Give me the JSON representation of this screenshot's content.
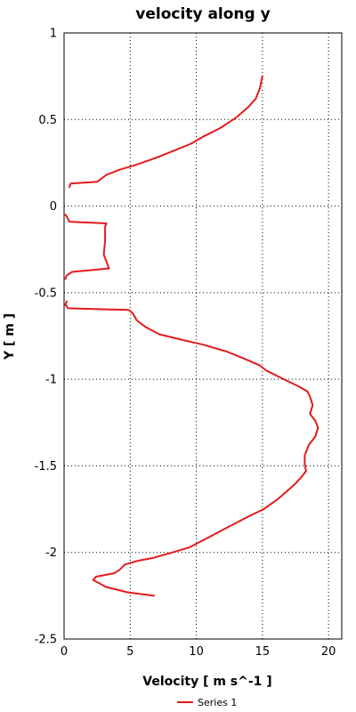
{
  "chart_data": {
    "type": "line",
    "title": "velocity along y",
    "xlabel": "Velocity [ m s^-1 ]",
    "ylabel": "Y [ m ]",
    "xlim": [
      0,
      21
    ],
    "ylim": [
      -2.5,
      1
    ],
    "xticks": [
      0,
      5,
      10,
      15,
      20
    ],
    "yticks": [
      1,
      0.5,
      0,
      -0.5,
      -1,
      -1.5,
      -2,
      -2.5
    ],
    "grid": true,
    "legend_position": "bottom-center",
    "series": [
      {
        "name": "Series 1",
        "color": "#e41a1c",
        "segments": [
          [
            [
              15,
              0.75
            ],
            [
              14.8,
              0.68
            ],
            [
              14.5,
              0.62
            ],
            [
              13.9,
              0.57
            ],
            [
              13,
              0.51
            ],
            [
              11.8,
              0.45
            ],
            [
              10.5,
              0.4
            ],
            [
              9.6,
              0.36
            ],
            [
              8.3,
              0.32
            ],
            [
              7,
              0.28
            ],
            [
              5.5,
              0.24
            ],
            [
              4.2,
              0.21
            ],
            [
              3.2,
              0.18
            ],
            [
              2.5,
              0.14
            ],
            [
              0.5,
              0.13
            ],
            [
              0.4,
              0.11
            ]
          ],
          [
            [
              0.1,
              -0.05
            ],
            [
              0.2,
              -0.06
            ],
            [
              0.4,
              -0.09
            ],
            [
              3.2,
              -0.1
            ],
            [
              3.1,
              -0.12
            ],
            [
              3.1,
              -0.2
            ],
            [
              3.0,
              -0.28
            ],
            [
              3.2,
              -0.32
            ],
            [
              3.4,
              -0.36
            ],
            [
              0.6,
              -0.38
            ],
            [
              0.2,
              -0.4
            ],
            [
              0.1,
              -0.42
            ]
          ],
          [
            [
              0.2,
              -0.55
            ],
            [
              0.1,
              -0.57
            ],
            [
              0.3,
              -0.59
            ],
            [
              4.9,
              -0.6
            ],
            [
              5.2,
              -0.62
            ],
            [
              5.5,
              -0.66
            ],
            [
              6.2,
              -0.7
            ],
            [
              7.2,
              -0.74
            ],
            [
              8.8,
              -0.77
            ],
            [
              10.5,
              -0.8
            ],
            [
              12.3,
              -0.84
            ],
            [
              13.6,
              -0.88
            ],
            [
              14.8,
              -0.92
            ],
            [
              15.3,
              -0.95
            ],
            [
              16.1,
              -0.98
            ],
            [
              16.9,
              -1.01
            ],
            [
              17.7,
              -1.04
            ],
            [
              18.4,
              -1.07
            ],
            [
              18.6,
              -1.1
            ],
            [
              18.8,
              -1.15
            ],
            [
              18.6,
              -1.2
            ],
            [
              19,
              -1.24
            ],
            [
              19.2,
              -1.28
            ],
            [
              19,
              -1.33
            ],
            [
              18.5,
              -1.38
            ],
            [
              18.2,
              -1.44
            ],
            [
              18.2,
              -1.49
            ],
            [
              18.3,
              -1.53
            ],
            [
              17.9,
              -1.57
            ],
            [
              17.4,
              -1.61
            ],
            [
              16.8,
              -1.65
            ],
            [
              16.2,
              -1.69
            ],
            [
              15.1,
              -1.75
            ],
            [
              14,
              -1.79
            ],
            [
              12.5,
              -1.85
            ],
            [
              11,
              -1.91
            ],
            [
              9.5,
              -1.97
            ],
            [
              8.2,
              -2.0
            ],
            [
              6.8,
              -2.03
            ],
            [
              5.5,
              -2.05
            ],
            [
              4.6,
              -2.07
            ],
            [
              4.2,
              -2.1
            ],
            [
              3.8,
              -2.12
            ],
            [
              2.4,
              -2.14
            ],
            [
              2.2,
              -2.16
            ],
            [
              3.2,
              -2.2
            ],
            [
              4.8,
              -2.23
            ],
            [
              6.8,
              -2.25
            ]
          ]
        ]
      }
    ]
  }
}
